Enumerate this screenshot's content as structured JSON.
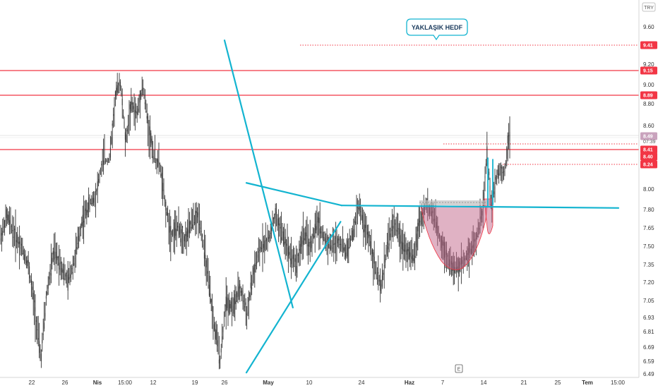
{
  "currency_label": "TRY",
  "scale_button": "E",
  "annotation": "YAKLAŞIK HEDF",
  "countdown": "07:39",
  "colors": {
    "resistance": "#f23645",
    "trend": "#13b4d0",
    "candle": "#333333",
    "cup_fill": "#c2668a",
    "axis_tag": "#f23645",
    "current_tag": "#c9a3bd",
    "grid_line": "#e8e8e8"
  },
  "chart_data": {
    "type": "candlestick",
    "title": "",
    "ylabel": "",
    "xlabel": "",
    "ylim": [
      6.49,
      9.75
    ],
    "y_ticks": [
      "9.60",
      "9.20",
      "9.00",
      "8.80",
      "8.60",
      "8.00",
      "7.80",
      "7.65",
      "7.50",
      "7.35",
      "7.20",
      "7.05",
      "6.93",
      "6.81",
      "6.69",
      "6.59",
      "6.49"
    ],
    "x_ticks": [
      "22",
      "26",
      "Nis",
      "15:00",
      "12",
      "19",
      "26",
      "May",
      "10",
      "24",
      "Haz",
      "7",
      "14",
      "21",
      "25",
      "Tem",
      "15:00"
    ],
    "price_tags": [
      {
        "label": "9.41",
        "value": 9.41,
        "kind": "dotted"
      },
      {
        "label": "9.15",
        "value": 9.15,
        "kind": "solid"
      },
      {
        "label": "8.89",
        "value": 8.89,
        "kind": "solid"
      },
      {
        "label": "8.49",
        "value": 8.49,
        "kind": "current"
      },
      {
        "label": "8.41",
        "value": 8.41,
        "kind": "solid"
      },
      {
        "label": "8.40",
        "value": 8.4,
        "kind": "solid"
      },
      {
        "label": "8.24",
        "value": 8.24,
        "kind": "dotted"
      }
    ],
    "resistance_levels": [
      9.15,
      8.89,
      8.41
    ],
    "target_level": 9.41,
    "current_price": 8.49,
    "trend_lines": [
      {
        "name": "upper",
        "from": [
          6.5,
          8.06
        ],
        "to": [
          8.62,
          7.84
        ]
      },
      {
        "name": "lower",
        "from": [
          6.5,
          6.5
        ],
        "to": [
          8.6,
          7.7
        ]
      },
      {
        "name": "falling",
        "from": [
          6.0,
          9.46
        ],
        "to": [
          7.6,
          7.0
        ]
      }
    ]
  }
}
